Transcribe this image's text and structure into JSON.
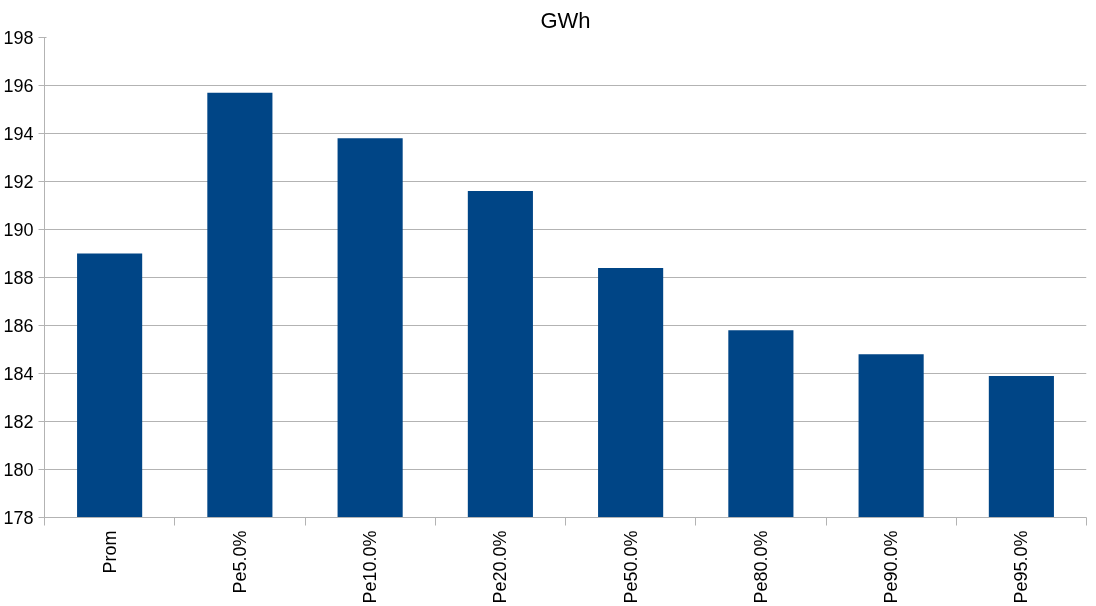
{
  "chart_data": {
    "type": "bar",
    "title": "GWh",
    "categories": [
      "Prom",
      "Pe5.0%",
      "Pe10.0%",
      "Pe20.0%",
      "Pe50.0%",
      "Pe80.0%",
      "Pe90.0%",
      "Pe95.0%"
    ],
    "values": [
      189.0,
      195.7,
      193.8,
      191.6,
      188.4,
      185.8,
      184.8,
      183.9
    ],
    "color": "#004586",
    "ylim": [
      178,
      198
    ],
    "yticks": [
      178,
      180,
      182,
      184,
      186,
      188,
      190,
      192,
      194,
      196,
      198
    ],
    "grid": "y"
  }
}
